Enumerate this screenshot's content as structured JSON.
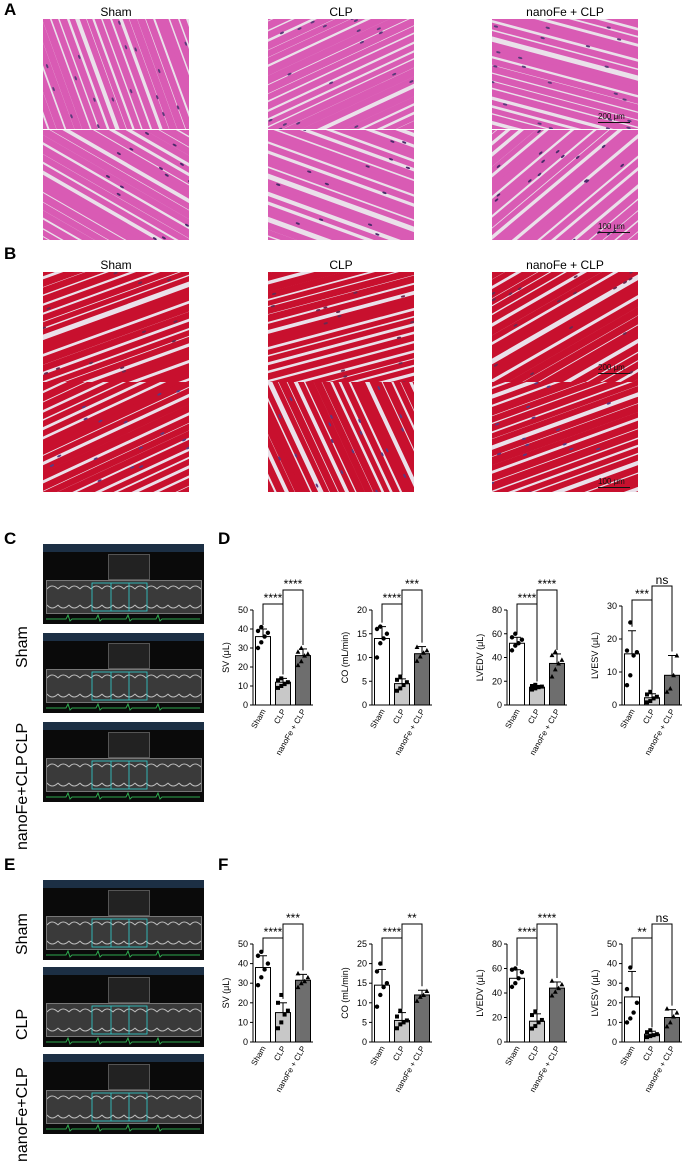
{
  "panels": {
    "A": "A",
    "B": "B",
    "C": "C",
    "D": "D",
    "E": "E",
    "F": "F"
  },
  "histology": {
    "columns": [
      "Sham",
      "CLP",
      "nanoFe + CLP"
    ],
    "scale_200": "200 μm",
    "scale_100": "100 μm",
    "he_color": "#d95bb4",
    "masson_color": "#c8102e"
  },
  "echo_rows": [
    "Sham",
    "CLP",
    "nanoFe+CLP"
  ],
  "chart_data": [
    {
      "type": "bar",
      "panel": "D",
      "categories": [
        "Sham",
        "CLP",
        "nanoFe + CLP"
      ],
      "ylabel": "SV (μL)",
      "ylim": [
        0,
        50
      ],
      "yticks": [
        0,
        10,
        20,
        30,
        40,
        50
      ],
      "values": [
        36,
        12,
        26
      ],
      "errors": [
        4,
        2,
        3.5
      ],
      "points": [
        [
          30,
          33,
          36,
          38,
          39,
          41
        ],
        [
          9,
          10,
          11,
          12,
          13,
          14
        ],
        [
          21,
          23,
          26,
          27,
          28,
          30
        ]
      ],
      "significance": [
        {
          "pair": [
            0,
            1
          ],
          "label": "****"
        },
        {
          "pair": [
            1,
            2
          ],
          "label": "****"
        }
      ]
    },
    {
      "type": "bar",
      "panel": "D",
      "categories": [
        "Sham",
        "CLP",
        "nanoFe + CLP"
      ],
      "ylabel": "CO (mL/min)",
      "ylim": [
        0,
        20
      ],
      "yticks": [
        0,
        5,
        10,
        15,
        20
      ],
      "values": [
        14,
        4.5,
        10.8
      ],
      "errors": [
        2.5,
        1.0,
        1.5
      ],
      "points": [
        [
          10,
          13,
          14,
          15,
          16,
          16.5
        ],
        [
          3,
          3.5,
          4.2,
          4.8,
          5.3,
          6
        ],
        [
          9.3,
          10.2,
          11,
          11.5,
          12.2
        ]
      ],
      "significance": [
        {
          "pair": [
            0,
            1
          ],
          "label": "****"
        },
        {
          "pair": [
            1,
            2
          ],
          "label": "***"
        }
      ]
    },
    {
      "type": "bar",
      "panel": "D",
      "categories": [
        "Sham",
        "CLP",
        "nanoFe + CLP"
      ],
      "ylabel": "LVEDV (μL)",
      "ylim": [
        0,
        80
      ],
      "yticks": [
        0,
        20,
        40,
        60,
        80
      ],
      "values": [
        52,
        15,
        35
      ],
      "errors": [
        5,
        1.5,
        8
      ],
      "points": [
        [
          46,
          50,
          52,
          55,
          57,
          60
        ],
        [
          13,
          14,
          15,
          15.5,
          16,
          17
        ],
        [
          24,
          30,
          35,
          38,
          42,
          45
        ]
      ],
      "significance": [
        {
          "pair": [
            0,
            1
          ],
          "label": "****"
        },
        {
          "pair": [
            1,
            2
          ],
          "label": "****"
        }
      ]
    },
    {
      "type": "bar",
      "panel": "D",
      "categories": [
        "Sham",
        "CLP",
        "nanoFe + CLP"
      ],
      "ylabel": "LVESV (μL)",
      "ylim": [
        0,
        30
      ],
      "yticks": [
        0,
        10,
        20,
        30
      ],
      "values": [
        15.5,
        2.2,
        9
      ],
      "errors": [
        7,
        1.2,
        6
      ],
      "points": [
        [
          6,
          9,
          15,
          16,
          16.5,
          25
        ],
        [
          0.8,
          1.2,
          2,
          2.5,
          3.2,
          4
        ],
        [
          4,
          5,
          9,
          15
        ]
      ],
      "significance": [
        {
          "pair": [
            0,
            1
          ],
          "label": "***"
        },
        {
          "pair": [
            1,
            2
          ],
          "label": "ns"
        }
      ]
    },
    {
      "type": "bar",
      "panel": "F",
      "categories": [
        "Sham",
        "CLP",
        "nanoFe + CLP"
      ],
      "ylabel": "SV (μL)",
      "ylim": [
        0,
        50
      ],
      "yticks": [
        0,
        10,
        20,
        30,
        40,
        50
      ],
      "values": [
        38,
        15,
        31.5
      ],
      "errors": [
        6,
        5,
        3
      ],
      "points": [
        [
          29,
          33,
          37,
          40,
          44,
          46
        ],
        [
          7,
          10,
          14,
          16,
          20,
          24
        ],
        [
          28,
          30,
          31,
          33,
          35
        ]
      ],
      "significance": [
        {
          "pair": [
            0,
            1
          ],
          "label": "****"
        },
        {
          "pair": [
            1,
            2
          ],
          "label": "***"
        }
      ]
    },
    {
      "type": "bar",
      "panel": "F",
      "categories": [
        "Sham",
        "CLP",
        "nanoFe + CLP"
      ],
      "ylabel": "CO (mL/min)",
      "ylim": [
        0,
        25
      ],
      "yticks": [
        0,
        5,
        10,
        15,
        20,
        25
      ],
      "values": [
        14.5,
        5.5,
        12
      ],
      "errors": [
        4,
        2,
        1.2
      ],
      "points": [
        [
          9,
          12,
          14,
          15,
          18,
          20
        ],
        [
          3.5,
          4.5,
          5,
          5.5,
          6.5,
          8
        ],
        [
          10.5,
          11.5,
          12,
          13
        ]
      ],
      "significance": [
        {
          "pair": [
            0,
            1
          ],
          "label": "****"
        },
        {
          "pair": [
            1,
            2
          ],
          "label": "**"
        }
      ]
    },
    {
      "type": "bar",
      "panel": "F",
      "categories": [
        "Sham",
        "CLP",
        "nanoFe + CLP"
      ],
      "ylabel": "LVEDV (μL)",
      "ylim": [
        0,
        80
      ],
      "yticks": [
        0,
        20,
        40,
        60,
        80
      ],
      "values": [
        52,
        17,
        44
      ],
      "errors": [
        7,
        6,
        5
      ],
      "points": [
        [
          45,
          48,
          52,
          57,
          59,
          60
        ],
        [
          11,
          13,
          16,
          18,
          22,
          25
        ],
        [
          38,
          41,
          44,
          47,
          50
        ]
      ],
      "significance": [
        {
          "pair": [
            0,
            1
          ],
          "label": "****"
        },
        {
          "pair": [
            1,
            2
          ],
          "label": "****"
        }
      ]
    },
    {
      "type": "bar",
      "panel": "F",
      "categories": [
        "Sham",
        "CLP",
        "nanoFe + CLP"
      ],
      "ylabel": "LVESV (μL)",
      "ylim": [
        0,
        50
      ],
      "yticks": [
        0,
        10,
        20,
        30,
        40,
        50
      ],
      "values": [
        23,
        4,
        12.5
      ],
      "errors": [
        13,
        1.5,
        4
      ],
      "points": [
        [
          10,
          12,
          15,
          20,
          27,
          38
        ],
        [
          2.5,
          3,
          3.5,
          4,
          5,
          6
        ],
        [
          8,
          10,
          13,
          15,
          17
        ]
      ],
      "significance": [
        {
          "pair": [
            0,
            1
          ],
          "label": "**"
        },
        {
          "pair": [
            1,
            2
          ],
          "label": "ns"
        }
      ]
    }
  ]
}
